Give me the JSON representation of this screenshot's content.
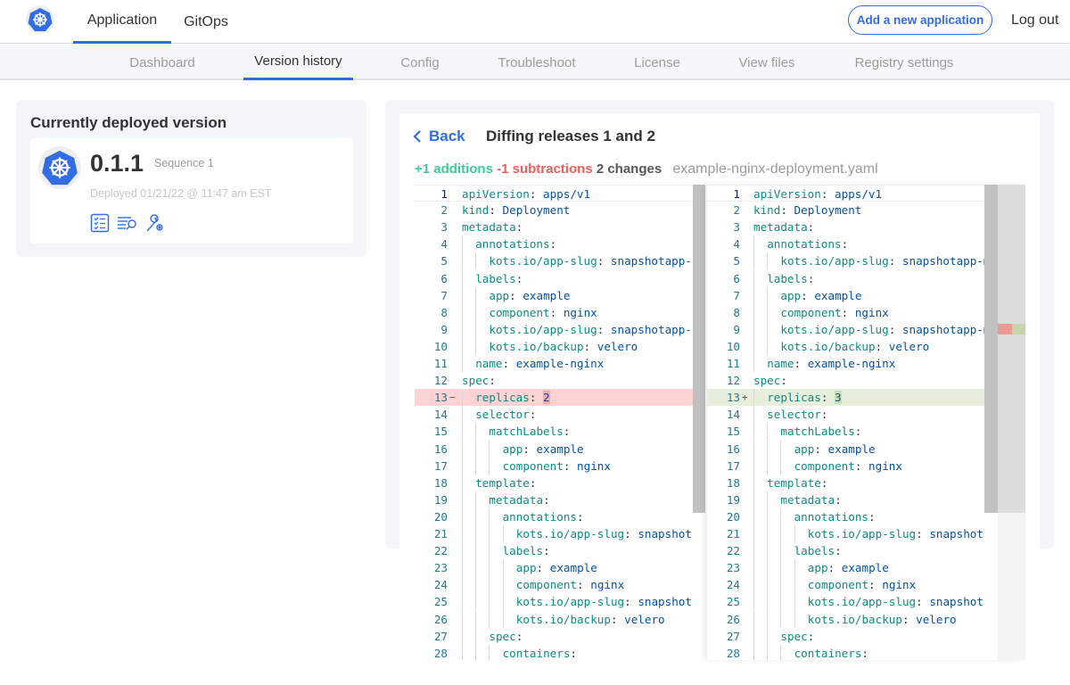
{
  "header": {
    "logo_icon": "kubernetes-helm-icon",
    "tabs": [
      {
        "label": "Application",
        "active": true
      },
      {
        "label": "GitOps",
        "active": false
      }
    ],
    "add_button": "Add a new application",
    "logout": "Log out"
  },
  "subnav": {
    "tabs": [
      {
        "label": "Dashboard"
      },
      {
        "label": "Version history",
        "active": true
      },
      {
        "label": "Config"
      },
      {
        "label": "Troubleshoot"
      },
      {
        "label": "License"
      },
      {
        "label": "View files"
      },
      {
        "label": "Registry settings"
      }
    ]
  },
  "deployed": {
    "title": "Currently deployed version",
    "version": "0.1.1",
    "sequence": "Sequence 1",
    "deployed_at": "Deployed 01/21/22 @ 11:47 am EST",
    "icons": [
      "preflight-checklist-icon",
      "logs-search-icon",
      "config-wrench-icon"
    ]
  },
  "diff": {
    "back": "Back",
    "title": "Diffing releases 1 and 2",
    "additions": "+1 additions",
    "subtractions": "-1 subtractions",
    "changes": "2 changes",
    "filename": "example-nginx-deployment.yaml",
    "colors": {
      "accent": "#326de6",
      "added": "#38cc97",
      "removed": "#f65c5c"
    },
    "lines": [
      {
        "n": 1,
        "i": 0,
        "k": "apiVersion",
        "v": "apps/v1"
      },
      {
        "n": 2,
        "i": 0,
        "k": "kind",
        "v": "Deployment"
      },
      {
        "n": 3,
        "i": 0,
        "k": "metadata",
        "v": ""
      },
      {
        "n": 4,
        "i": 1,
        "k": "annotations",
        "v": ""
      },
      {
        "n": 5,
        "i": 2,
        "k": "kots.io/app-slug",
        "v": "snapshotapp-mu"
      },
      {
        "n": 6,
        "i": 1,
        "k": "labels",
        "v": ""
      },
      {
        "n": 7,
        "i": 2,
        "k": "app",
        "v": "example"
      },
      {
        "n": 8,
        "i": 2,
        "k": "component",
        "v": "nginx"
      },
      {
        "n": 9,
        "i": 2,
        "k": "kots.io/app-slug",
        "v": "snapshotapp-mu"
      },
      {
        "n": 10,
        "i": 2,
        "k": "kots.io/backup",
        "v": "velero"
      },
      {
        "n": 11,
        "i": 1,
        "k": "name",
        "v": "example-nginx"
      },
      {
        "n": 12,
        "i": 0,
        "k": "spec",
        "v": ""
      },
      {
        "n": 13,
        "i": 1,
        "k": "replicas",
        "v": "2",
        "v_right": "3",
        "changed": true
      },
      {
        "n": 14,
        "i": 1,
        "k": "selector",
        "v": ""
      },
      {
        "n": 15,
        "i": 2,
        "k": "matchLabels",
        "v": ""
      },
      {
        "n": 16,
        "i": 3,
        "k": "app",
        "v": "example"
      },
      {
        "n": 17,
        "i": 3,
        "k": "component",
        "v": "nginx"
      },
      {
        "n": 18,
        "i": 1,
        "k": "template",
        "v": ""
      },
      {
        "n": 19,
        "i": 2,
        "k": "metadata",
        "v": ""
      },
      {
        "n": 20,
        "i": 3,
        "k": "annotations",
        "v": ""
      },
      {
        "n": 21,
        "i": 4,
        "k": "kots.io/app-slug",
        "v": "snapshotap"
      },
      {
        "n": 22,
        "i": 3,
        "k": "labels",
        "v": ""
      },
      {
        "n": 23,
        "i": 4,
        "k": "app",
        "v": "example"
      },
      {
        "n": 24,
        "i": 4,
        "k": "component",
        "v": "nginx"
      },
      {
        "n": 25,
        "i": 4,
        "k": "kots.io/app-slug",
        "v": "snapshotap"
      },
      {
        "n": 26,
        "i": 4,
        "k": "kots.io/backup",
        "v": "velero"
      },
      {
        "n": 27,
        "i": 2,
        "k": "spec",
        "v": ""
      },
      {
        "n": 28,
        "i": 3,
        "k": "containers",
        "v": ""
      }
    ]
  }
}
